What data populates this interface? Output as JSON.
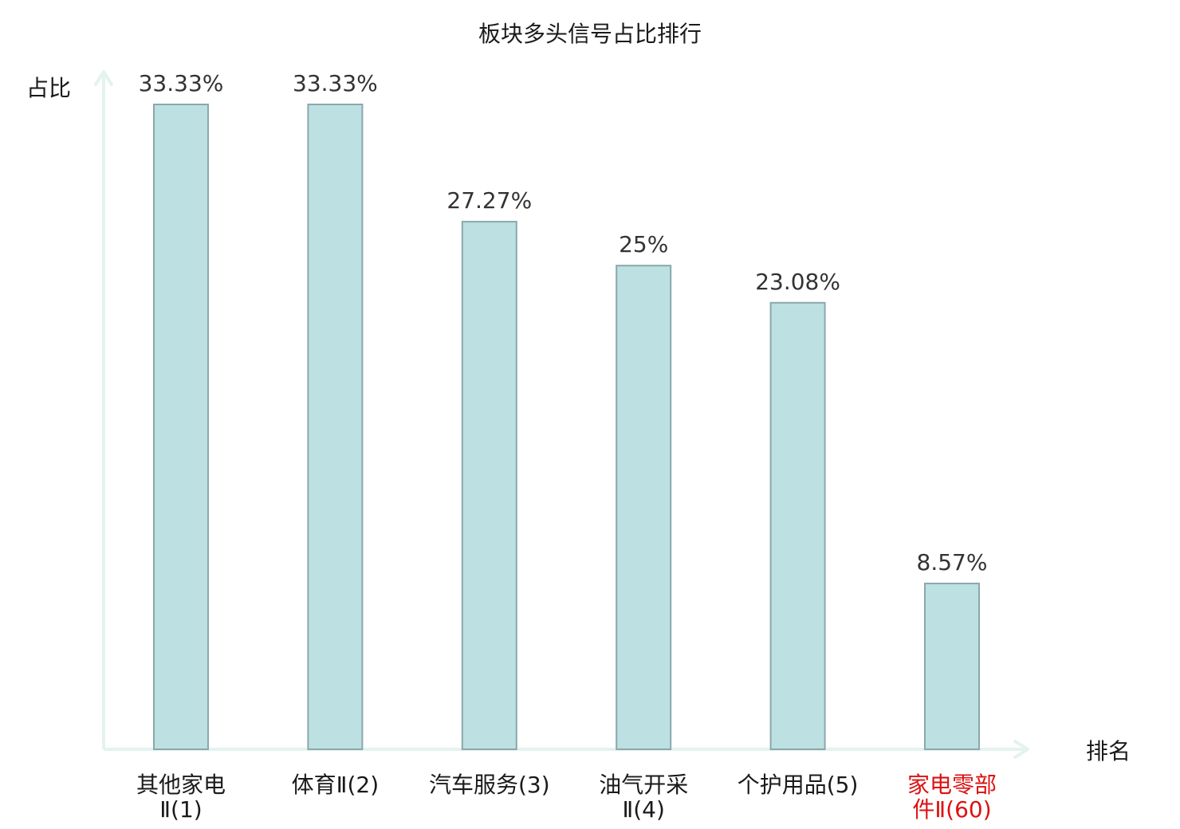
{
  "chart_data": {
    "type": "bar",
    "title": "板块多头信号占比排行",
    "xlabel": "排名",
    "ylabel": "占比",
    "categories": [
      [
        "其他家电",
        "Ⅱ(1)"
      ],
      [
        "体育Ⅱ(2)"
      ],
      [
        "汽车服务(3)"
      ],
      [
        "油气开采",
        "Ⅱ(4)"
      ],
      [
        "个护用品(5)"
      ],
      [
        "家电零部",
        "件Ⅱ(60)"
      ]
    ],
    "values": [
      33.33,
      33.33,
      27.27,
      25,
      23.08,
      8.57
    ],
    "value_labels": [
      "33.33%",
      "33.33%",
      "27.27%",
      "25%",
      "23.08%",
      "8.57%"
    ],
    "highlighted_category_index": 5,
    "ylim": [
      0,
      33.33
    ],
    "grid": false,
    "colors": {
      "bar_fill": "#bde0e3",
      "bar_stroke": "#8aa8aa",
      "axis": "#e3f3ef",
      "text": "#1a1a1a",
      "value_text": "#333333",
      "highlight_text": "#dd1111"
    }
  }
}
